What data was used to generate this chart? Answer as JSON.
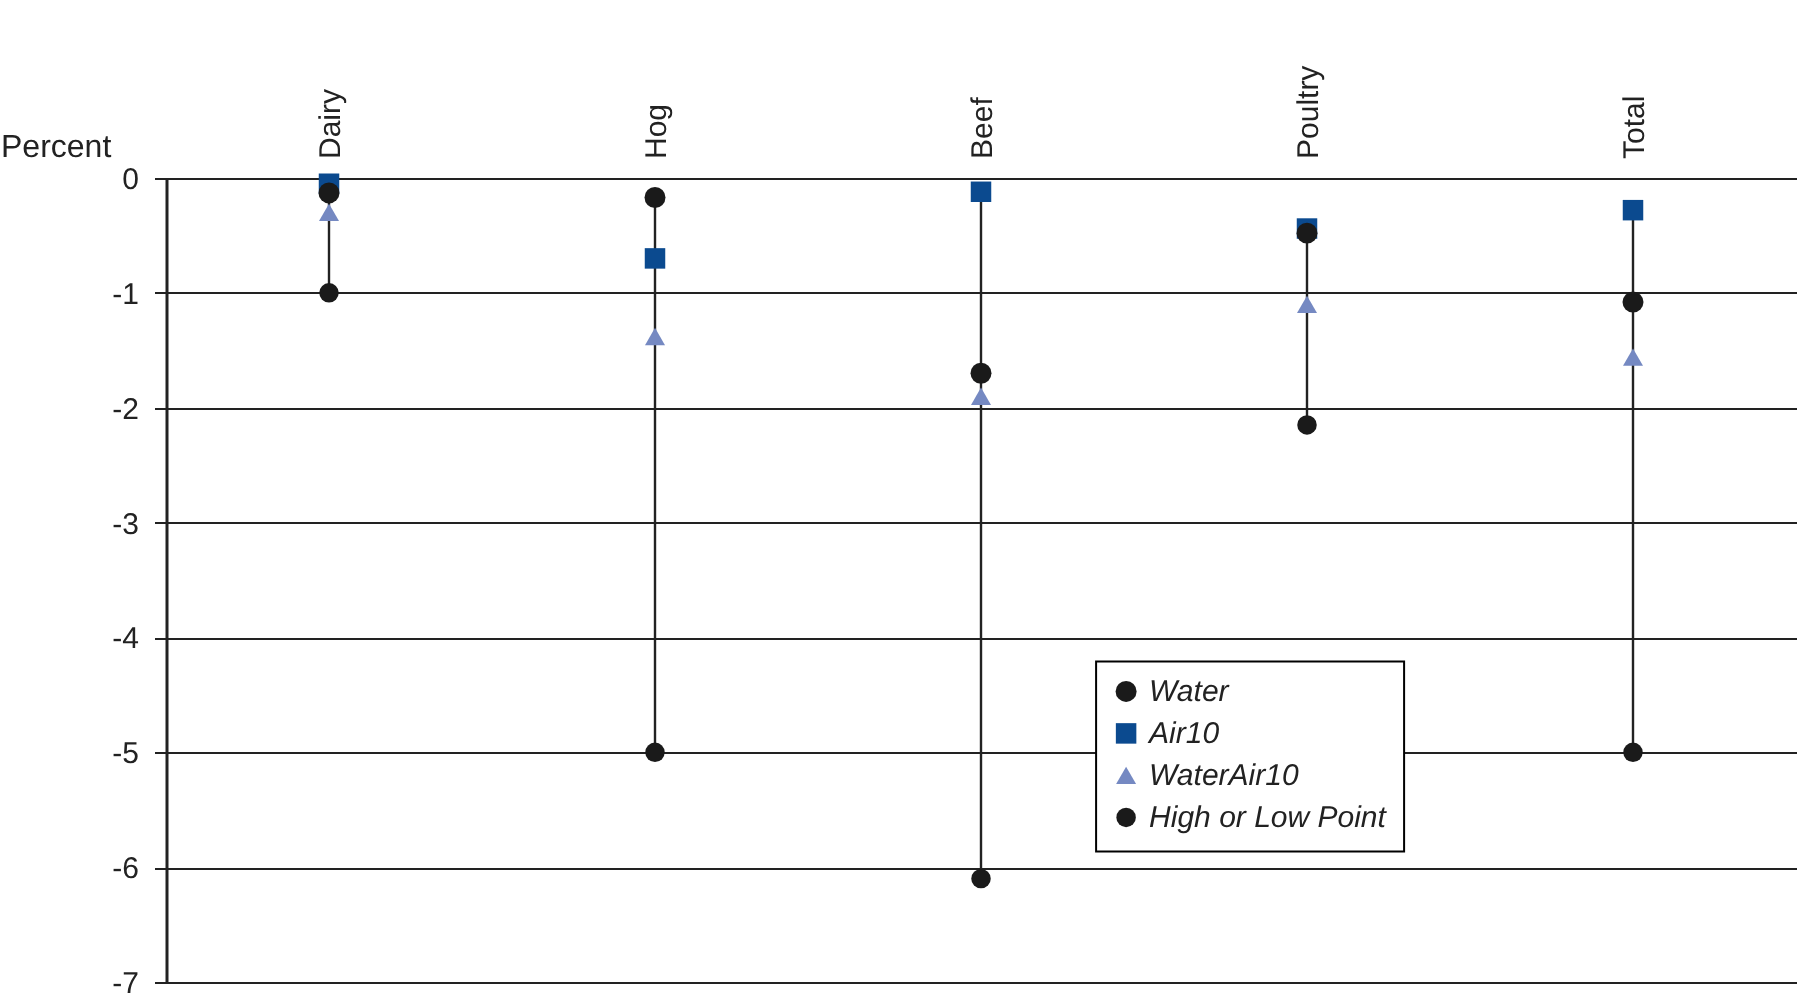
{
  "chart_data": {
    "type": "scatter",
    "ylabel": "Percent",
    "categories": [
      "Dairy",
      "Hog",
      "Beef",
      "Poultry",
      "Total"
    ],
    "series": [
      {
        "name": "Water",
        "color": "#1a1a1a",
        "marker": "circle",
        "values": [
          -0.13,
          -0.17,
          -1.7,
          -0.48,
          -1.08
        ]
      },
      {
        "name": "Air10",
        "color": "#0b4a8f",
        "marker": "square",
        "values": [
          -0.05,
          -0.7,
          -0.12,
          -0.44,
          -0.28
        ]
      },
      {
        "name": "WaterAir10",
        "color": "#7589c2",
        "marker": "triangle",
        "values": [
          -0.3,
          -1.38,
          -1.9,
          -1.1,
          -1.56
        ]
      },
      {
        "name": "High or Low Point",
        "color": "#1a1a1a",
        "marker": "circle",
        "values": [
          -1.0,
          -5.0,
          -6.1,
          -2.15,
          -5.0
        ]
      }
    ],
    "ylim": [
      -7,
      0
    ],
    "yticks": [
      -7,
      -6,
      -5,
      -4,
      -3,
      -2,
      -1,
      0
    ],
    "grid": "y",
    "legend": "bottom right"
  }
}
